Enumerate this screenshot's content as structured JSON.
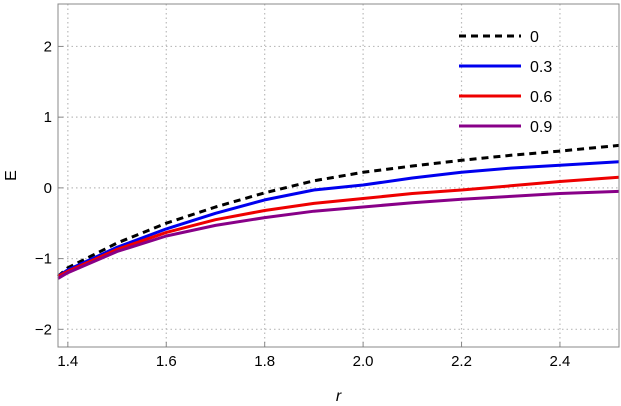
{
  "chart_data": {
    "type": "line",
    "xlabel": "r",
    "ylabel": "E",
    "xlim": [
      1.38,
      2.52
    ],
    "ylim": [
      -2.25,
      2.6
    ],
    "x_ticks": [
      1.4,
      1.6,
      1.8,
      2.0,
      2.2,
      2.4
    ],
    "x_tick_labels": [
      "1.4",
      "1.6",
      "1.8",
      "2.0",
      "2.2",
      "2.4"
    ],
    "y_ticks": [
      -2,
      -1,
      0,
      1,
      2
    ],
    "y_tick_labels": [
      "−2",
      "−1",
      "0",
      "1",
      "2"
    ],
    "grid": true,
    "legend_position": "top-right",
    "x": [
      1.38,
      1.4,
      1.5,
      1.6,
      1.7,
      1.8,
      1.9,
      2.0,
      2.1,
      2.2,
      2.3,
      2.4,
      2.52
    ],
    "series": [
      {
        "name": "0",
        "color": "#000000",
        "dash": "dashed",
        "values": [
          -1.25,
          -1.13,
          -0.78,
          -0.5,
          -0.27,
          -0.07,
          0.1,
          0.22,
          0.31,
          0.39,
          0.46,
          0.52,
          0.6
        ]
      },
      {
        "name": "0.3",
        "color": "#0000ee",
        "dash": "solid",
        "values": [
          -1.25,
          -1.16,
          -0.84,
          -0.58,
          -0.36,
          -0.17,
          -0.03,
          0.04,
          0.14,
          0.22,
          0.28,
          0.32,
          0.37
        ]
      },
      {
        "name": "0.6",
        "color": "#ee0000",
        "dash": "solid",
        "values": [
          -1.25,
          -1.18,
          -0.87,
          -0.63,
          -0.45,
          -0.32,
          -0.22,
          -0.15,
          -0.08,
          -0.03,
          0.03,
          0.09,
          0.15
        ]
      },
      {
        "name": "0.9",
        "color": "#880088",
        "dash": "solid",
        "values": [
          -1.28,
          -1.2,
          -0.9,
          -0.68,
          -0.53,
          -0.42,
          -0.33,
          -0.27,
          -0.21,
          -0.16,
          -0.12,
          -0.08,
          -0.05
        ]
      }
    ]
  }
}
